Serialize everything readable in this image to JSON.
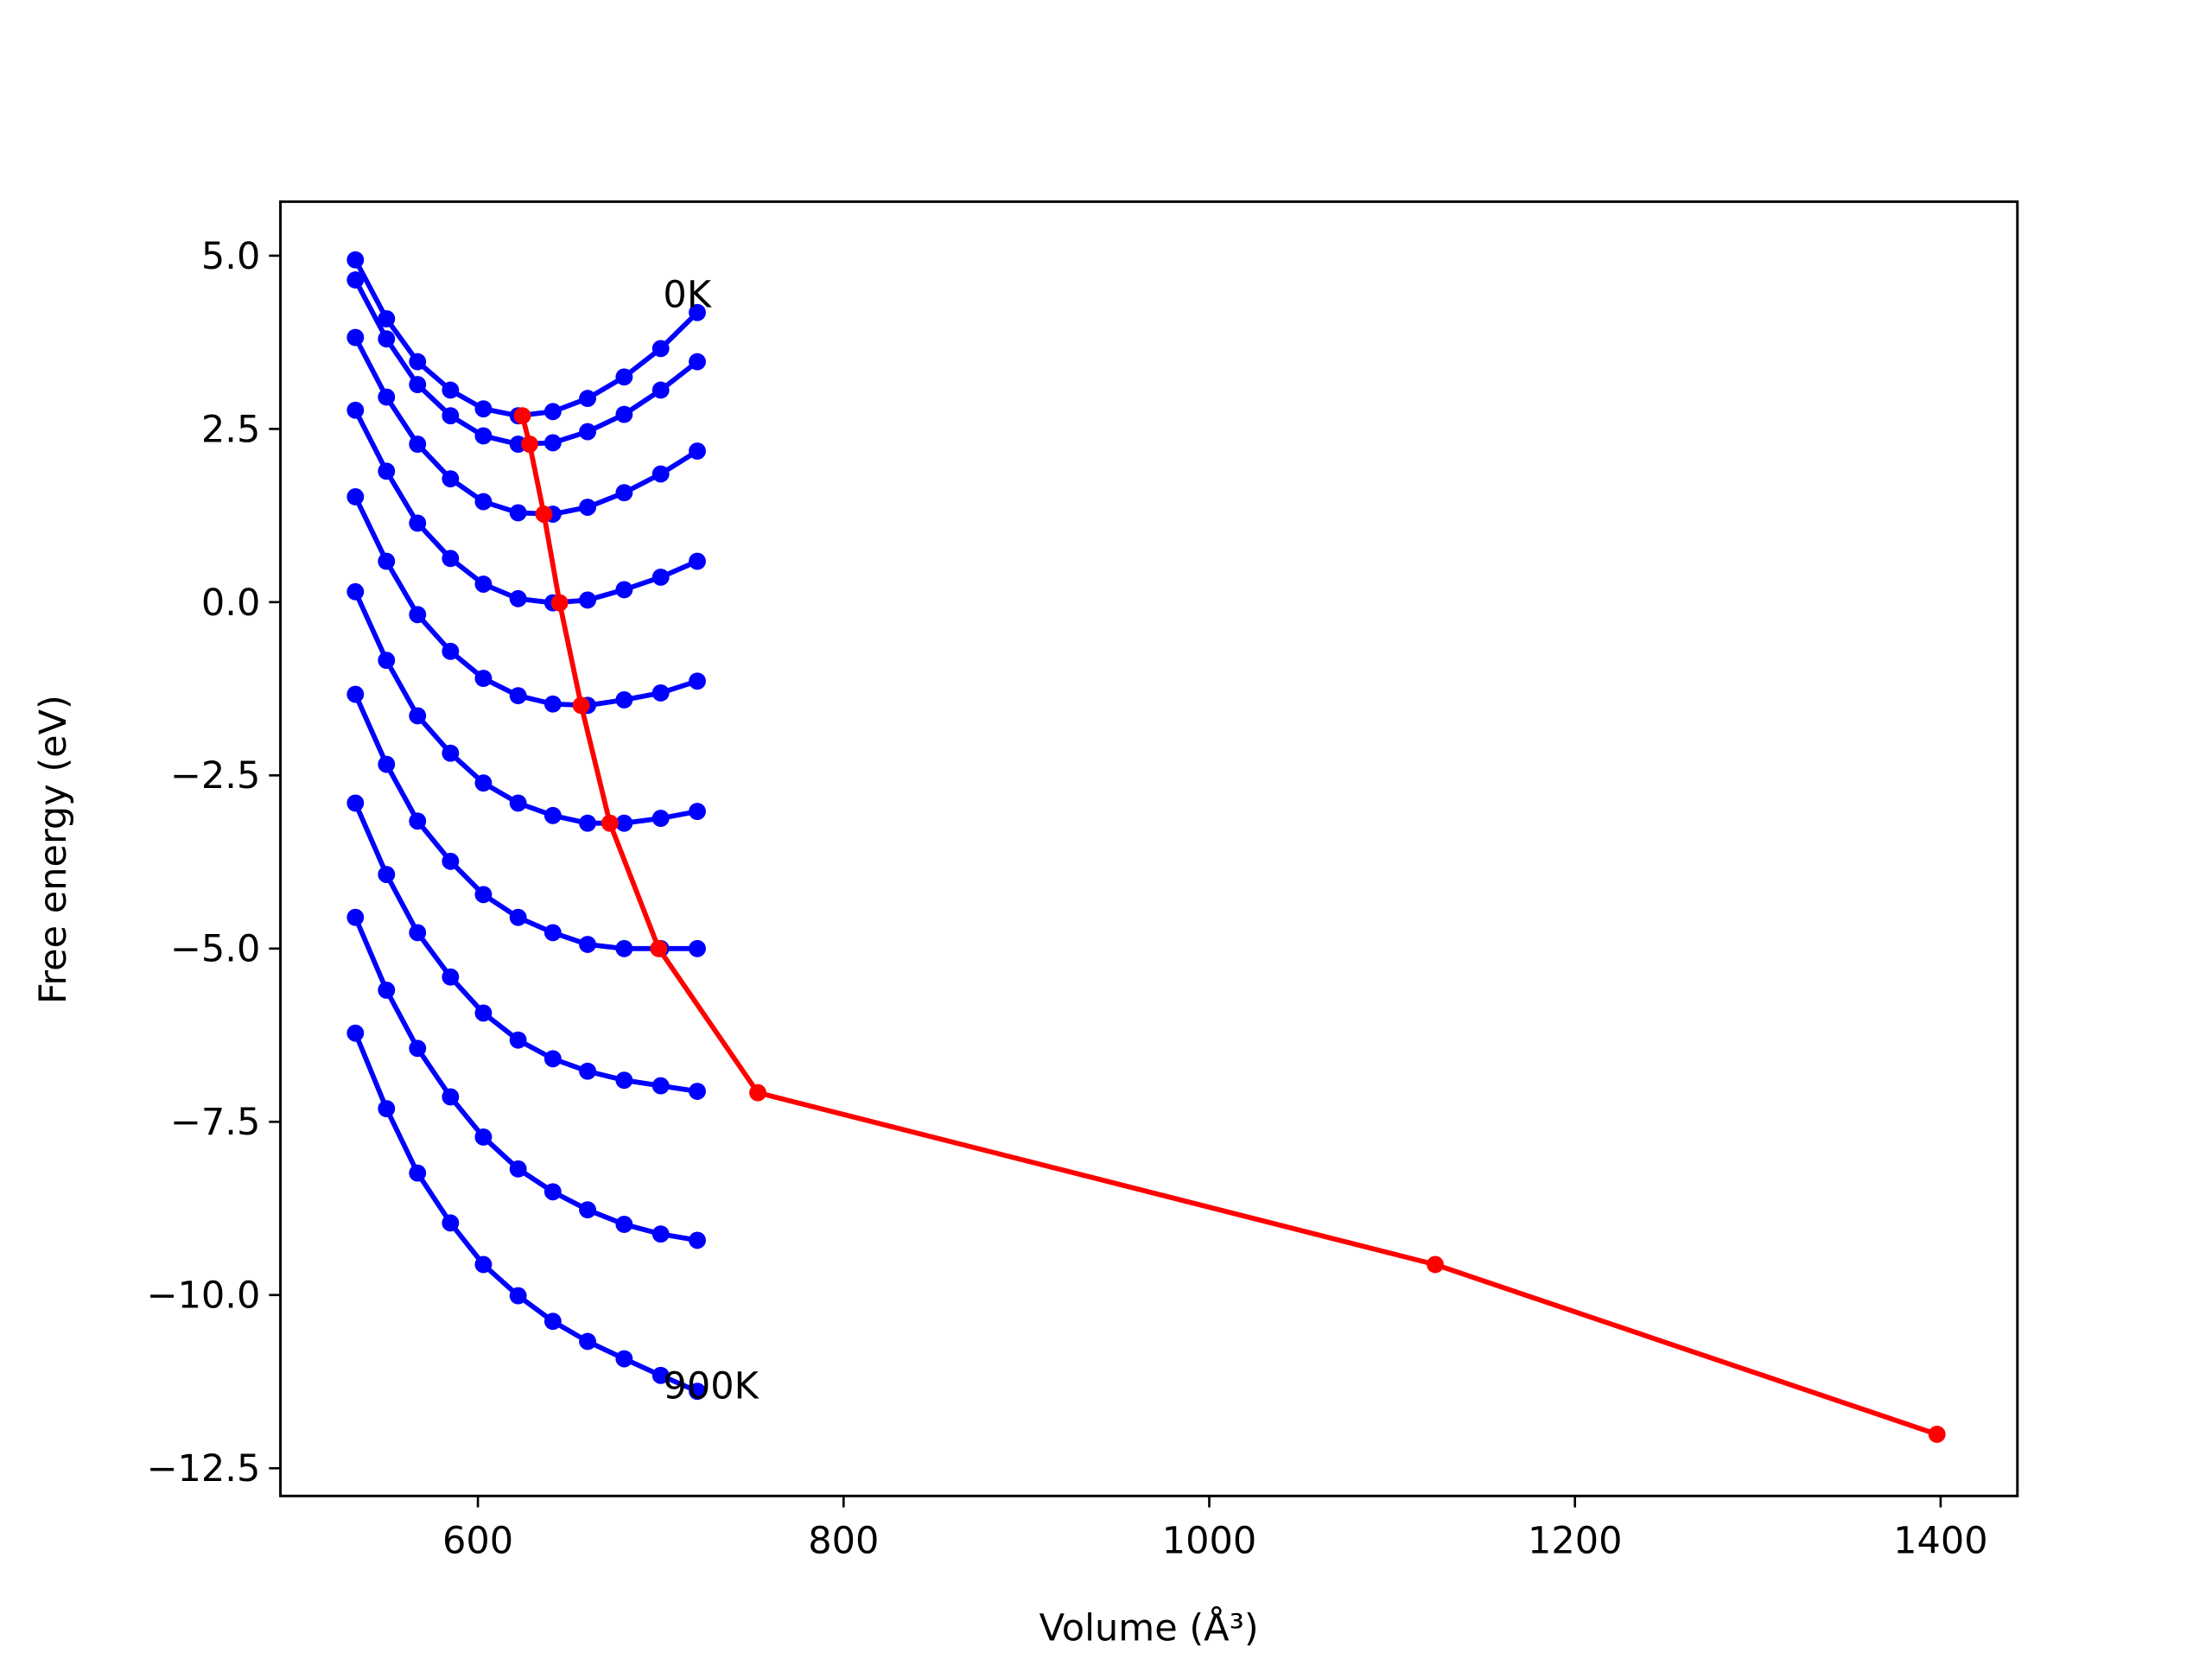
{
  "chart_data": {
    "type": "line",
    "xlabel": "Volume (Å³)",
    "ylabel": "Free energy (eV)",
    "xlim": [
      492,
      1442
    ],
    "ylim": [
      -12.9,
      5.78
    ],
    "xticks": [
      600,
      800,
      1000,
      1200,
      1400
    ],
    "yticks": [
      {
        "value": 5.0,
        "label": "5.0"
      },
      {
        "value": 2.5,
        "label": "2.5"
      },
      {
        "value": 0.0,
        "label": "0.0"
      },
      {
        "value": -2.5,
        "label": "−2.5"
      },
      {
        "value": -5.0,
        "label": "−5.0"
      },
      {
        "value": -7.5,
        "label": "−7.5"
      },
      {
        "value": -10.0,
        "label": "−10.0"
      },
      {
        "value": -12.5,
        "label": "−12.5"
      }
    ],
    "grid": false,
    "series": [
      {
        "color": "#0000ff",
        "x": [
          533,
          550,
          567,
          585,
          603,
          622,
          641,
          660,
          680,
          700,
          720
        ],
        "values": [
          4.94,
          4.09,
          3.47,
          3.06,
          2.79,
          2.69,
          2.75,
          2.94,
          3.25,
          3.66,
          4.18
        ]
      },
      {
        "color": "#0000ff",
        "x": [
          533,
          550,
          567,
          585,
          603,
          622,
          641,
          660,
          680,
          700,
          720
        ],
        "values": [
          4.65,
          3.8,
          3.14,
          2.69,
          2.4,
          2.28,
          2.3,
          2.46,
          2.71,
          3.06,
          3.47
        ]
      },
      {
        "color": "#0000ff",
        "x": [
          533,
          550,
          567,
          585,
          603,
          622,
          641,
          660,
          680,
          700,
          720
        ],
        "values": [
          3.82,
          2.96,
          2.28,
          1.78,
          1.45,
          1.29,
          1.27,
          1.37,
          1.58,
          1.85,
          2.18
        ]
      },
      {
        "color": "#0000ff",
        "x": [
          533,
          550,
          567,
          585,
          603,
          622,
          641,
          660,
          680,
          700,
          720
        ],
        "values": [
          2.77,
          1.89,
          1.14,
          0.63,
          0.26,
          0.05,
          -0.01,
          0.03,
          0.18,
          0.36,
          0.59
        ]
      },
      {
        "color": "#0000ff",
        "x": [
          533,
          550,
          567,
          585,
          603,
          622,
          641,
          660,
          680,
          700,
          720
        ],
        "values": [
          1.52,
          0.59,
          -0.18,
          -0.71,
          -1.1,
          -1.35,
          -1.47,
          -1.49,
          -1.41,
          -1.31,
          -1.14
        ]
      },
      {
        "color": "#0000ff",
        "x": [
          533,
          550,
          567,
          585,
          603,
          622,
          641,
          660,
          680,
          700,
          720
        ],
        "values": [
          0.15,
          -0.84,
          -1.64,
          -2.18,
          -2.61,
          -2.9,
          -3.08,
          -3.19,
          -3.19,
          -3.12,
          -3.02
        ]
      },
      {
        "color": "#0000ff",
        "x": [
          533,
          550,
          567,
          585,
          603,
          622,
          641,
          660,
          680,
          700,
          720
        ],
        "values": [
          -1.33,
          -2.34,
          -3.16,
          -3.74,
          -4.22,
          -4.55,
          -4.77,
          -4.94,
          -5.0,
          -5.0,
          -5.0
        ]
      },
      {
        "color": "#0000ff",
        "x": [
          533,
          550,
          567,
          585,
          603,
          622,
          641,
          660,
          680,
          700,
          720
        ],
        "values": [
          -2.9,
          -3.93,
          -4.77,
          -5.41,
          -5.93,
          -6.32,
          -6.59,
          -6.77,
          -6.9,
          -6.98,
          -7.06
        ]
      },
      {
        "color": "#0000ff",
        "x": [
          533,
          550,
          567,
          585,
          603,
          622,
          641,
          660,
          680,
          700,
          720
        ],
        "values": [
          -4.55,
          -5.6,
          -6.44,
          -7.14,
          -7.72,
          -8.18,
          -8.51,
          -8.77,
          -8.98,
          -9.12,
          -9.21
        ]
      },
      {
        "color": "#0000ff",
        "x": [
          533,
          550,
          567,
          585,
          603,
          622,
          641,
          660,
          680,
          700,
          720
        ],
        "values": [
          -6.22,
          -7.31,
          -8.24,
          -8.96,
          -9.56,
          -10.01,
          -10.38,
          -10.67,
          -10.92,
          -11.16,
          -11.39
        ]
      },
      {
        "color": "#ff0000",
        "x": [
          624.3,
          628.3,
          636.1,
          644.7,
          656.5,
          672.2,
          698.9,
          753.1,
          1123.6,
          1398
        ],
        "values": [
          2.69,
          2.28,
          1.27,
          -0.01,
          -1.49,
          -3.19,
          -5.0,
          -7.08,
          -9.56,
          -12.01
        ]
      }
    ],
    "annotations": [
      {
        "text": "0K",
        "x": 701.3,
        "y": 4.42
      },
      {
        "text": "900K",
        "x": 701.3,
        "y": -11.33
      }
    ]
  }
}
